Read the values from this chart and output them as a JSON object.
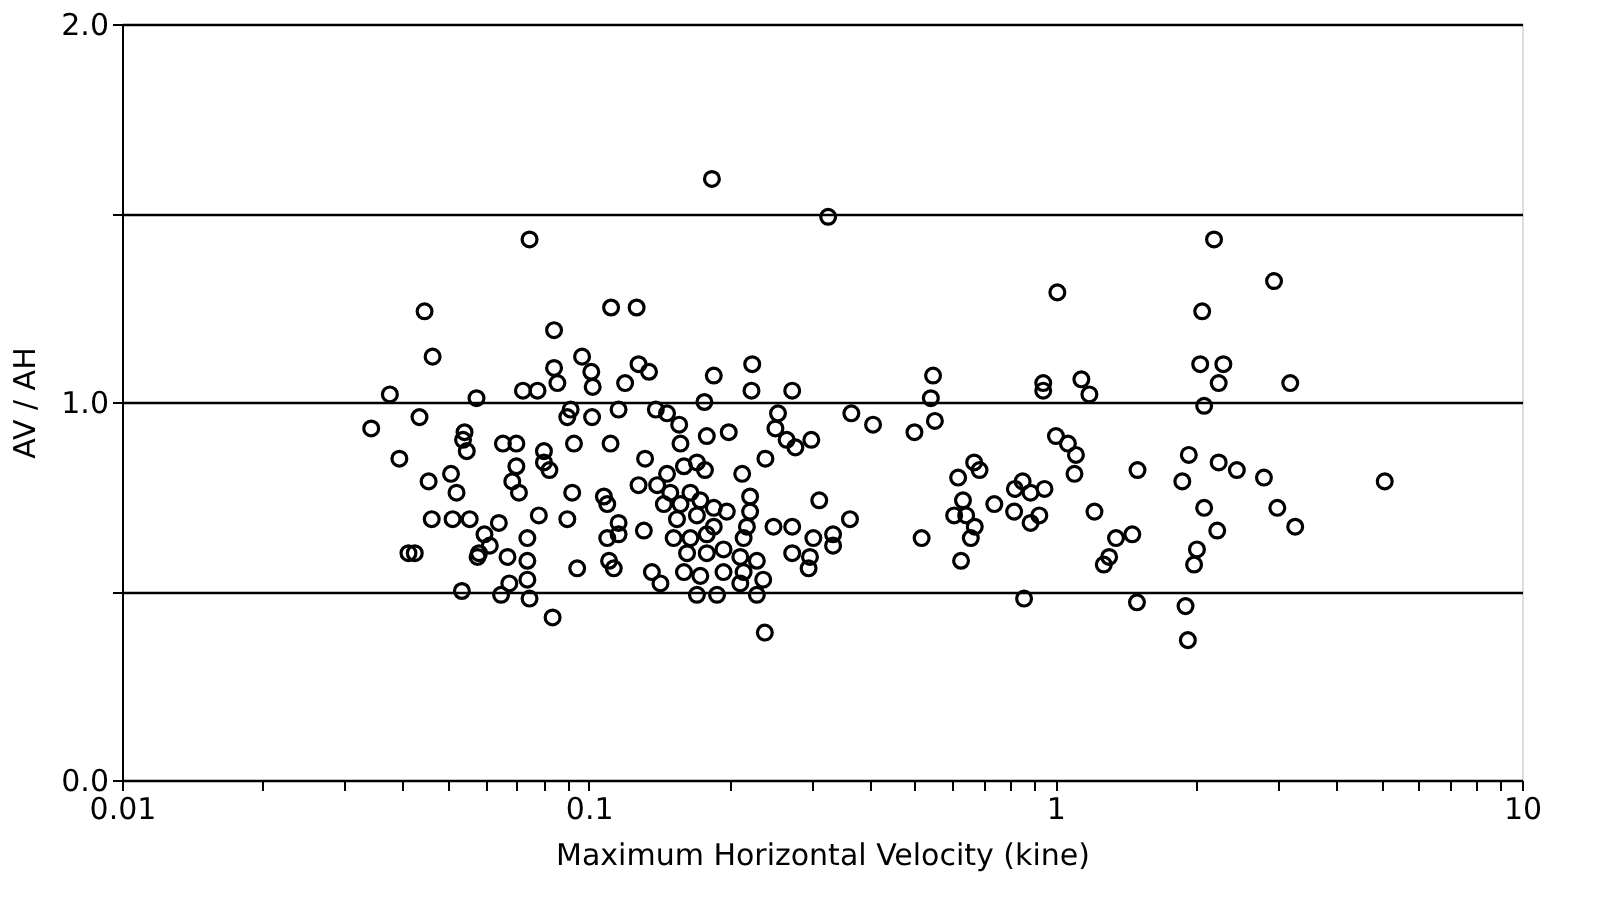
{
  "chart_data": {
    "type": "scatter",
    "xlabel": "Maximum Horizontal Velocity (kine)",
    "ylabel": "AV / AH",
    "log": "x",
    "xlim": [
      0.01,
      10
    ],
    "xticks": [
      0.01,
      {
        "value": 0.02,
        "label": null
      },
      {
        "value": 0.03,
        "label": null
      },
      {
        "value": 0.04,
        "label": null
      },
      {
        "value": 0.05,
        "label": null
      },
      {
        "value": 0.06,
        "label": null
      },
      {
        "value": 0.07,
        "label": null
      },
      {
        "value": 0.08,
        "label": null
      },
      {
        "value": 0.09,
        "label": null
      },
      0.1,
      {
        "value": 0.2,
        "label": null
      },
      {
        "value": 0.3,
        "label": null
      },
      {
        "value": 0.4,
        "label": null
      },
      {
        "value": 0.5,
        "label": null
      },
      {
        "value": 0.6,
        "label": null
      },
      {
        "value": 0.7,
        "label": null
      },
      {
        "value": 0.8,
        "label": null
      },
      {
        "value": 0.9,
        "label": null
      },
      1,
      {
        "value": 2,
        "label": null
      },
      {
        "value": 3,
        "label": null
      },
      {
        "value": 4,
        "label": null
      },
      {
        "value": 5,
        "label": null
      },
      {
        "value": 6,
        "label": null
      },
      {
        "value": 7,
        "label": null
      },
      {
        "value": 8,
        "label": null
      },
      {
        "value": 9,
        "label": null
      },
      10
    ],
    "ylim": [
      0,
      2.0
    ],
    "yticks": [
      {
        "value": 0,
        "label": "0.0"
      },
      {
        "value": 0.5,
        "label": null
      },
      {
        "value": 1,
        "label": "1.0"
      },
      {
        "value": 1.5,
        "label": null
      },
      {
        "value": 2,
        "label": "2.0"
      }
    ],
    "grid": "y",
    "marker": "circle",
    "series": [
      {
        "color": "#000000",
        "x": [
          0.0445,
          0.0463,
          0.0375,
          0.0575,
          0.0342,
          0.0434,
          0.0542,
          0.0538,
          0.0548,
          0.0393,
          0.0507,
          0.0454,
          0.0521,
          0.0461,
          0.0511,
          0.0556,
          0.0598,
          0.0411,
          0.0424,
          0.0582,
          0.0535,
          0.1837,
          0.0747,
          0.1117,
          0.1267,
          0.0843,
          0.0723,
          0.0777,
          0.0843,
          0.0857,
          0.0968,
          0.1013,
          0.102,
          0.1279,
          0.1347,
          0.1197,
          0.1854,
          0.2241,
          0.2233,
          0.177,
          0.0915,
          0.09,
          0.1017,
          0.1159,
          0.1393,
          0.1472,
          0.1563,
          0.1791,
          0.1996,
          0.2392,
          0.0655,
          0.07,
          0.0802,
          0.0802,
          0.0824,
          0.07,
          0.0686,
          0.0709,
          0.093,
          0.1114,
          0.1321,
          0.1573,
          0.0922,
          0.0782,
          0.09,
          0.1078,
          0.1096,
          0.1159,
          0.1159,
          0.1096,
          0.1313,
          0.1279,
          0.1402,
          0.1472,
          0.16,
          0.1706,
          0.1775,
          0.1496,
          0.1652,
          0.1449,
          0.1573,
          0.1735,
          0.1854,
          0.1977,
          0.2133,
          0.2218,
          0.2218,
          0.1546,
          0.1706,
          0.1854,
          0.1521,
          0.1652,
          0.1791,
          0.2183,
          0.2148,
          0.1625,
          0.1791,
          0.1945,
          0.2113,
          0.2293,
          0.16,
          0.1735,
          0.1945,
          0.2148,
          0.2366,
          0.1706,
          0.1884,
          0.2113,
          0.2293,
          0.1366,
          0.1425,
          0.2385,
          0.1106,
          0.1132,
          0.0945,
          0.0739,
          0.0642,
          0.0614,
          0.0578,
          0.067,
          0.0739,
          0.0739,
          0.0676,
          0.0649,
          0.0747,
          0.0837,
          0.326,
          0.273,
          0.2545,
          0.2513,
          0.2656,
          0.2773,
          0.3,
          0.3655,
          0.4068,
          0.312,
          0.2489,
          0.273,
          0.303,
          0.334,
          0.363,
          0.334,
          0.273,
          0.298,
          0.296,
          0.547,
          0.541,
          0.552,
          0.499,
          0.517,
          0.619,
          0.67,
          0.688,
          0.634,
          0.607,
          0.644,
          0.672,
          0.659,
          0.628,
          0.74,
          0.816,
          0.819,
          0.851,
          0.885,
          0.948,
          0.924,
          0.885,
          0.857,
          0.942,
          0.942,
          1.137,
          1.183,
          1.01,
          1.003,
          1.064,
          1.107,
          1.099,
          1.213,
          1.5,
          1.349,
          1.462,
          1.304,
          1.27,
          1.496,
          1.901,
          1.923,
          1.932,
          1.871,
          2.084,
          2.223,
          2.011,
          1.983,
          2.188,
          2.064,
          2.044,
          2.291,
          2.239,
          2.084,
          2.239,
          2.449,
          2.799,
          2.99,
          3.266,
          2.942,
          3.187,
          5.08
        ],
        "values": [
          1.24,
          1.12,
          1.02,
          1.01,
          0.93,
          0.96,
          0.92,
          0.9,
          0.87,
          0.85,
          0.81,
          0.79,
          0.76,
          0.69,
          0.69,
          0.69,
          0.65,
          0.6,
          0.6,
          0.6,
          0.5,
          1.59,
          1.43,
          1.25,
          1.25,
          1.19,
          1.03,
          1.03,
          1.09,
          1.05,
          1.12,
          1.08,
          1.04,
          1.1,
          1.08,
          1.05,
          1.07,
          1.1,
          1.03,
          1.0,
          0.98,
          0.96,
          0.96,
          0.98,
          0.98,
          0.97,
          0.94,
          0.91,
          0.92,
          0.85,
          0.89,
          0.89,
          0.87,
          0.84,
          0.82,
          0.83,
          0.79,
          0.76,
          0.89,
          0.89,
          0.85,
          0.89,
          0.76,
          0.7,
          0.69,
          0.75,
          0.73,
          0.68,
          0.65,
          0.64,
          0.66,
          0.78,
          0.78,
          0.81,
          0.83,
          0.84,
          0.82,
          0.76,
          0.76,
          0.73,
          0.73,
          0.74,
          0.72,
          0.71,
          0.81,
          0.75,
          0.71,
          0.69,
          0.7,
          0.67,
          0.64,
          0.64,
          0.65,
          0.67,
          0.64,
          0.6,
          0.6,
          0.61,
          0.59,
          0.58,
          0.55,
          0.54,
          0.55,
          0.55,
          0.53,
          0.49,
          0.49,
          0.52,
          0.49,
          0.55,
          0.52,
          0.39,
          0.58,
          0.56,
          0.56,
          0.64,
          0.68,
          0.62,
          0.59,
          0.59,
          0.58,
          0.53,
          0.52,
          0.49,
          0.48,
          0.43,
          1.49,
          1.03,
          0.97,
          0.93,
          0.9,
          0.88,
          0.9,
          0.97,
          0.94,
          0.74,
          0.67,
          0.67,
          0.64,
          0.65,
          0.69,
          0.62,
          0.6,
          0.59,
          0.56,
          1.07,
          1.01,
          0.95,
          0.92,
          0.64,
          0.8,
          0.84,
          0.82,
          0.74,
          0.7,
          0.7,
          0.67,
          0.64,
          0.58,
          0.73,
          0.71,
          0.77,
          0.79,
          0.76,
          0.77,
          0.7,
          0.68,
          0.48,
          1.05,
          1.03,
          1.06,
          1.02,
          1.29,
          0.91,
          0.89,
          0.86,
          0.81,
          0.71,
          0.82,
          0.64,
          0.65,
          0.59,
          0.57,
          0.47,
          0.46,
          0.37,
          0.86,
          0.79,
          0.72,
          0.66,
          0.61,
          0.57,
          1.43,
          1.24,
          1.1,
          1.1,
          1.05,
          0.99,
          0.84,
          0.82,
          0.8,
          0.72,
          0.67,
          1.32,
          1.05,
          0.79
        ]
      }
    ]
  }
}
